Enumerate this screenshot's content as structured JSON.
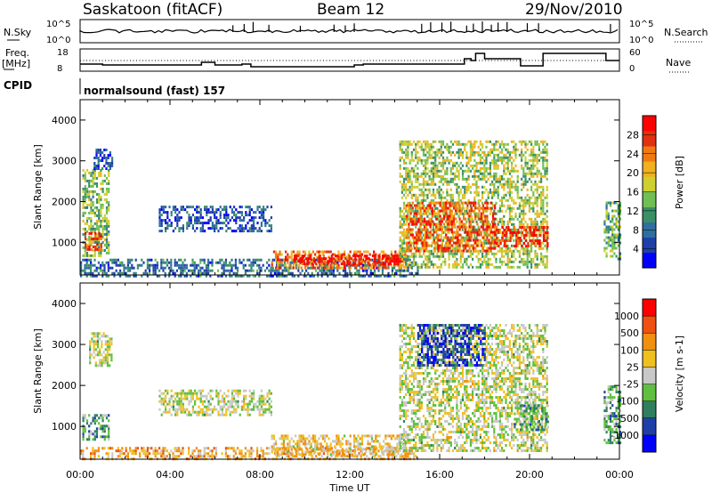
{
  "header": {
    "station": "Saskatoon (fitACF)",
    "beam": "Beam 12",
    "date": "29/Nov/2010"
  },
  "status_panels": {
    "nsky_label": "N.Sky",
    "nsky_top": "10^5",
    "nsky_bottom": "10^0",
    "nsearch_label": "N.Search",
    "nsearch_top": "10^5",
    "nsearch_bottom": "10^0",
    "freq_label_line1": "Freq.",
    "freq_label_line2": "[MHz]",
    "freq_ticks": [
      "18",
      "8"
    ],
    "nave_label": "Nave",
    "nave_ticks": [
      "60",
      "0"
    ],
    "cpid_label": "CPID",
    "cpid_value": "normalsound (fast) 157"
  },
  "chart_data": [
    {
      "type": "heatmap",
      "title": "Power",
      "xlabel": "",
      "ylabel": "Slant Range [km]",
      "colorbar_label": "Power [dB]",
      "x_ticks": [
        "00:00",
        "04:00",
        "08:00",
        "12:00",
        "16:00",
        "20:00",
        "00:00"
      ],
      "y_ticks": [
        "1000",
        "2000",
        "3000",
        "4000"
      ],
      "ylim": [
        200,
        4500
      ],
      "xlim_hours": [
        0,
        24
      ],
      "colorbar_ticks": [
        "4",
        "8",
        "12",
        "16",
        "20",
        "24",
        "28"
      ],
      "colorbar_colors": [
        "#0000ff",
        "#1f3fa8",
        "#2f6f9f",
        "#3a8f66",
        "#6fbf55",
        "#cfcf30",
        "#f0b020",
        "#f07a10",
        "#e03010",
        "#ff0000"
      ],
      "regions": [
        {
          "h0": 0.1,
          "h1": 1.3,
          "r0": 700,
          "r1": 2800,
          "level": 0.45
        },
        {
          "h0": 0.2,
          "h1": 0.9,
          "r0": 850,
          "r1": 1250,
          "level": 0.85
        },
        {
          "h0": 0.6,
          "h1": 1.4,
          "r0": 2800,
          "r1": 3300,
          "level": 0.2
        },
        {
          "h0": 3.5,
          "h1": 8.5,
          "r0": 1300,
          "r1": 1900,
          "level": 0.2
        },
        {
          "h0": 0.0,
          "h1": 15.0,
          "r0": 200,
          "r1": 600,
          "level": 0.25
        },
        {
          "h0": 8.5,
          "h1": 14.5,
          "r0": 400,
          "r1": 800,
          "level": 0.75
        },
        {
          "h0": 9.5,
          "h1": 14.5,
          "r0": 450,
          "r1": 700,
          "level": 0.95
        },
        {
          "h0": 14.2,
          "h1": 20.8,
          "r0": 400,
          "r1": 3500,
          "level": 0.5
        },
        {
          "h0": 14.5,
          "h1": 18.5,
          "r0": 800,
          "r1": 2000,
          "level": 0.8
        },
        {
          "h0": 18.5,
          "h1": 20.8,
          "r0": 900,
          "r1": 1400,
          "level": 0.9
        },
        {
          "h0": 23.3,
          "h1": 24.0,
          "r0": 600,
          "r1": 2000,
          "level": 0.4
        }
      ]
    },
    {
      "type": "heatmap",
      "title": "Velocity",
      "xlabel": "Time UT",
      "ylabel": "Slant Range [km]",
      "colorbar_label": "Velocity [m s-1]",
      "x_ticks": [
        "00:00",
        "04:00",
        "08:00",
        "12:00",
        "16:00",
        "20:00",
        "00:00"
      ],
      "y_ticks": [
        "1000",
        "2000",
        "3000",
        "4000"
      ],
      "ylim": [
        200,
        4500
      ],
      "xlim_hours": [
        0,
        24
      ],
      "colorbar_ticks": [
        "1000",
        "500",
        "100",
        "25",
        "-25",
        "-100",
        "-500",
        "-1000"
      ],
      "colorbar_colors": [
        "#0000ff",
        "#1f3fa8",
        "#2f7f5f",
        "#5fbf40",
        "#c8c8c8",
        "#f0c020",
        "#f09010",
        "#f05010",
        "#ff0000"
      ],
      "regions": [
        {
          "h0": 0.1,
          "h1": 1.3,
          "r0": 700,
          "r1": 1300,
          "level": 0.35
        },
        {
          "h0": 0.4,
          "h1": 1.4,
          "r0": 2500,
          "r1": 3300,
          "level": 0.5
        },
        {
          "h0": 3.5,
          "h1": 8.5,
          "r0": 1300,
          "r1": 1900,
          "level": 0.5
        },
        {
          "h0": 0.0,
          "h1": 15.0,
          "r0": 200,
          "r1": 500,
          "level": 0.65
        },
        {
          "h0": 8.5,
          "h1": 14.5,
          "r0": 300,
          "r1": 800,
          "level": 0.6
        },
        {
          "h0": 14.2,
          "h1": 20.8,
          "r0": 400,
          "r1": 3500,
          "level": 0.5
        },
        {
          "h0": 15.0,
          "h1": 18.0,
          "r0": 2500,
          "r1": 3500,
          "level": 0.15
        },
        {
          "h0": 19.3,
          "h1": 20.8,
          "r0": 900,
          "r1": 1600,
          "level": 0.35
        },
        {
          "h0": 23.3,
          "h1": 24.0,
          "r0": 600,
          "r1": 2000,
          "level": 0.35
        }
      ]
    }
  ]
}
